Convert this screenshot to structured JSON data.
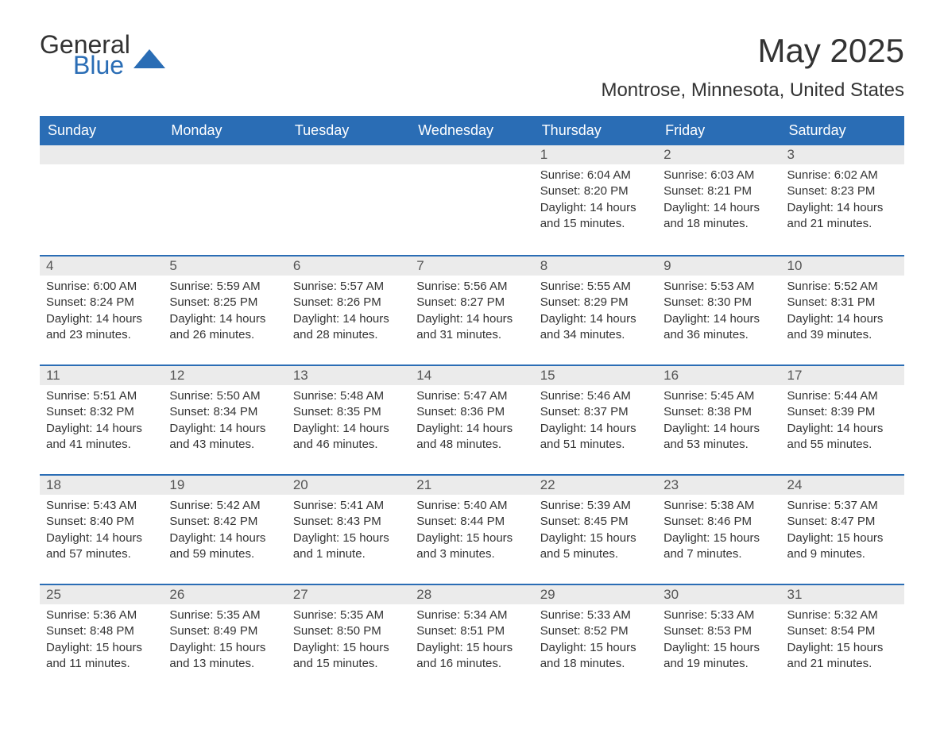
{
  "logo": {
    "general": "General",
    "blue": "Blue",
    "triangle_color": "#2a6db5"
  },
  "title": "May 2025",
  "location": "Montrose, Minnesota, United States",
  "colors": {
    "header_bg": "#2a6db5",
    "header_text": "#ffffff",
    "row_accent": "#2a6db5",
    "day_bg": "#ebebeb",
    "body_text": "#333333"
  },
  "weekdays": [
    "Sunday",
    "Monday",
    "Tuesday",
    "Wednesday",
    "Thursday",
    "Friday",
    "Saturday"
  ],
  "weeks": [
    [
      null,
      null,
      null,
      null,
      {
        "n": "1",
        "sunrise": "6:04 AM",
        "sunset": "8:20 PM",
        "daylight": "14 hours and 15 minutes."
      },
      {
        "n": "2",
        "sunrise": "6:03 AM",
        "sunset": "8:21 PM",
        "daylight": "14 hours and 18 minutes."
      },
      {
        "n": "3",
        "sunrise": "6:02 AM",
        "sunset": "8:23 PM",
        "daylight": "14 hours and 21 minutes."
      }
    ],
    [
      {
        "n": "4",
        "sunrise": "6:00 AM",
        "sunset": "8:24 PM",
        "daylight": "14 hours and 23 minutes."
      },
      {
        "n": "5",
        "sunrise": "5:59 AM",
        "sunset": "8:25 PM",
        "daylight": "14 hours and 26 minutes."
      },
      {
        "n": "6",
        "sunrise": "5:57 AM",
        "sunset": "8:26 PM",
        "daylight": "14 hours and 28 minutes."
      },
      {
        "n": "7",
        "sunrise": "5:56 AM",
        "sunset": "8:27 PM",
        "daylight": "14 hours and 31 minutes."
      },
      {
        "n": "8",
        "sunrise": "5:55 AM",
        "sunset": "8:29 PM",
        "daylight": "14 hours and 34 minutes."
      },
      {
        "n": "9",
        "sunrise": "5:53 AM",
        "sunset": "8:30 PM",
        "daylight": "14 hours and 36 minutes."
      },
      {
        "n": "10",
        "sunrise": "5:52 AM",
        "sunset": "8:31 PM",
        "daylight": "14 hours and 39 minutes."
      }
    ],
    [
      {
        "n": "11",
        "sunrise": "5:51 AM",
        "sunset": "8:32 PM",
        "daylight": "14 hours and 41 minutes."
      },
      {
        "n": "12",
        "sunrise": "5:50 AM",
        "sunset": "8:34 PM",
        "daylight": "14 hours and 43 minutes."
      },
      {
        "n": "13",
        "sunrise": "5:48 AM",
        "sunset": "8:35 PM",
        "daylight": "14 hours and 46 minutes."
      },
      {
        "n": "14",
        "sunrise": "5:47 AM",
        "sunset": "8:36 PM",
        "daylight": "14 hours and 48 minutes."
      },
      {
        "n": "15",
        "sunrise": "5:46 AM",
        "sunset": "8:37 PM",
        "daylight": "14 hours and 51 minutes."
      },
      {
        "n": "16",
        "sunrise": "5:45 AM",
        "sunset": "8:38 PM",
        "daylight": "14 hours and 53 minutes."
      },
      {
        "n": "17",
        "sunrise": "5:44 AM",
        "sunset": "8:39 PM",
        "daylight": "14 hours and 55 minutes."
      }
    ],
    [
      {
        "n": "18",
        "sunrise": "5:43 AM",
        "sunset": "8:40 PM",
        "daylight": "14 hours and 57 minutes."
      },
      {
        "n": "19",
        "sunrise": "5:42 AM",
        "sunset": "8:42 PM",
        "daylight": "14 hours and 59 minutes."
      },
      {
        "n": "20",
        "sunrise": "5:41 AM",
        "sunset": "8:43 PM",
        "daylight": "15 hours and 1 minute."
      },
      {
        "n": "21",
        "sunrise": "5:40 AM",
        "sunset": "8:44 PM",
        "daylight": "15 hours and 3 minutes."
      },
      {
        "n": "22",
        "sunrise": "5:39 AM",
        "sunset": "8:45 PM",
        "daylight": "15 hours and 5 minutes."
      },
      {
        "n": "23",
        "sunrise": "5:38 AM",
        "sunset": "8:46 PM",
        "daylight": "15 hours and 7 minutes."
      },
      {
        "n": "24",
        "sunrise": "5:37 AM",
        "sunset": "8:47 PM",
        "daylight": "15 hours and 9 minutes."
      }
    ],
    [
      {
        "n": "25",
        "sunrise": "5:36 AM",
        "sunset": "8:48 PM",
        "daylight": "15 hours and 11 minutes."
      },
      {
        "n": "26",
        "sunrise": "5:35 AM",
        "sunset": "8:49 PM",
        "daylight": "15 hours and 13 minutes."
      },
      {
        "n": "27",
        "sunrise": "5:35 AM",
        "sunset": "8:50 PM",
        "daylight": "15 hours and 15 minutes."
      },
      {
        "n": "28",
        "sunrise": "5:34 AM",
        "sunset": "8:51 PM",
        "daylight": "15 hours and 16 minutes."
      },
      {
        "n": "29",
        "sunrise": "5:33 AM",
        "sunset": "8:52 PM",
        "daylight": "15 hours and 18 minutes."
      },
      {
        "n": "30",
        "sunrise": "5:33 AM",
        "sunset": "8:53 PM",
        "daylight": "15 hours and 19 minutes."
      },
      {
        "n": "31",
        "sunrise": "5:32 AM",
        "sunset": "8:54 PM",
        "daylight": "15 hours and 21 minutes."
      }
    ]
  ],
  "labels": {
    "sunrise": "Sunrise: ",
    "sunset": "Sunset: ",
    "daylight": "Daylight: "
  }
}
